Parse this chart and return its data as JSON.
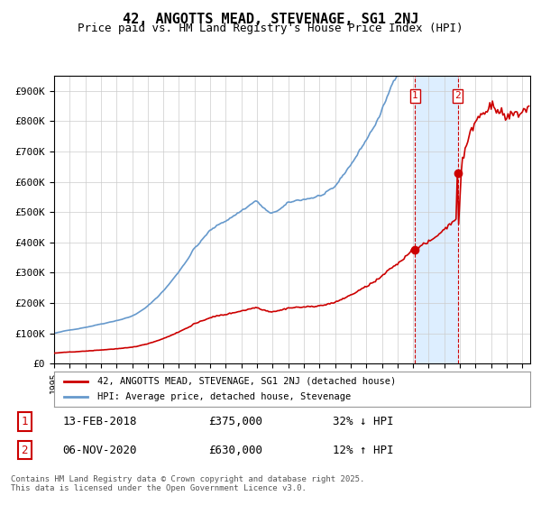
{
  "title": "42, ANGOTTS MEAD, STEVENAGE, SG1 2NJ",
  "subtitle": "Price paid vs. HM Land Registry's House Price Index (HPI)",
  "legend_line1": "42, ANGOTTS MEAD, STEVENAGE, SG1 2NJ (detached house)",
  "legend_line2": "HPI: Average price, detached house, Stevenage",
  "annotation1_label": "1",
  "annotation1_date": "13-FEB-2018",
  "annotation1_price": "£375,000",
  "annotation1_hpi": "32% ↓ HPI",
  "annotation2_label": "2",
  "annotation2_date": "06-NOV-2020",
  "annotation2_price": "£630,000",
  "annotation2_hpi": "12% ↑ HPI",
  "footer": "Contains HM Land Registry data © Crown copyright and database right 2025.\nThis data is licensed under the Open Government Licence v3.0.",
  "red_color": "#cc0000",
  "blue_color": "#6699cc",
  "bg_color": "#ffffff",
  "plot_bg_color": "#ffffff",
  "grid_color": "#cccccc",
  "highlight_color": "#ddeeff",
  "ylim_max": 950000,
  "ytick_values": [
    0,
    100000,
    200000,
    300000,
    400000,
    500000,
    600000,
    700000,
    800000,
    900000
  ],
  "ytick_labels": [
    "£0",
    "£100K",
    "£200K",
    "£300K",
    "£400K",
    "£500K",
    "£600K",
    "£700K",
    "£800K",
    "£900K"
  ],
  "start_year": 1995,
  "end_year": 2025,
  "sale1_year": 2018.12,
  "sale2_year": 2020.85,
  "sale1_price": 375000,
  "sale2_price": 630000,
  "sale1_hpi_price": 375000,
  "sale2_hpi_price": 630000
}
